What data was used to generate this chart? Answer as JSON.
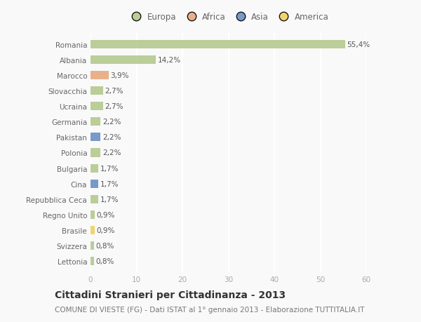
{
  "countries": [
    "Romania",
    "Albania",
    "Marocco",
    "Slovacchia",
    "Ucraina",
    "Germania",
    "Pakistan",
    "Polonia",
    "Bulgaria",
    "Cina",
    "Repubblica Ceca",
    "Regno Unito",
    "Brasile",
    "Svizzera",
    "Lettonia"
  ],
  "values": [
    55.4,
    14.2,
    3.9,
    2.7,
    2.7,
    2.2,
    2.2,
    2.2,
    1.7,
    1.7,
    1.7,
    0.9,
    0.9,
    0.8,
    0.8
  ],
  "labels": [
    "55,4%",
    "14,2%",
    "3,9%",
    "2,7%",
    "2,7%",
    "2,2%",
    "2,2%",
    "2,2%",
    "1,7%",
    "1,7%",
    "1,7%",
    "0,9%",
    "0,9%",
    "0,8%",
    "0,8%"
  ],
  "continents": [
    "Europa",
    "Europa",
    "Africa",
    "Europa",
    "Europa",
    "Europa",
    "Asia",
    "Europa",
    "Europa",
    "Asia",
    "Europa",
    "Europa",
    "America",
    "Europa",
    "Europa"
  ],
  "continent_colors": {
    "Europa": "#b5c98e",
    "Africa": "#e8a97e",
    "Asia": "#6b8fc4",
    "America": "#f0d060"
  },
  "legend_order": [
    "Europa",
    "Africa",
    "Asia",
    "America"
  ],
  "title": "Cittadini Stranieri per Cittadinanza - 2013",
  "subtitle": "COMUNE DI VIESTE (FG) - Dati ISTAT al 1° gennaio 2013 - Elaborazione TUTTITALIA.IT",
  "xlim": [
    0,
    60
  ],
  "xticks": [
    0,
    10,
    20,
    30,
    40,
    50,
    60
  ],
  "background_color": "#f9f9f9",
  "grid_color": "#ffffff",
  "bar_height": 0.55,
  "title_fontsize": 10,
  "subtitle_fontsize": 7.5,
  "label_fontsize": 7.5,
  "tick_fontsize": 7.5,
  "legend_fontsize": 8.5
}
